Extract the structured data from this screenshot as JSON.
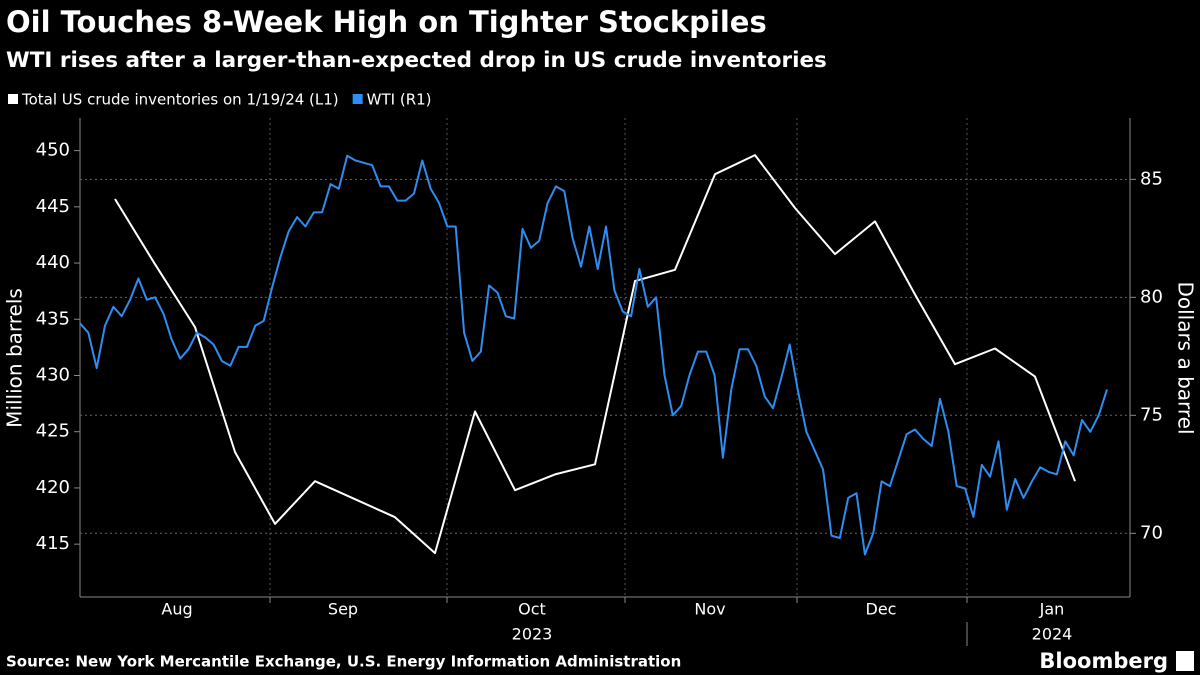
{
  "chart_data": {
    "type": "line",
    "title": "Oil Touches 8-Week High on Tighter Stockpiles",
    "subtitle": "WTI rises after a larger-than-expected drop in US crude inventories",
    "x_labels": [
      "Aug",
      "Sep",
      "Oct",
      "Nov",
      "Dec",
      "Jan"
    ],
    "year_labels": [
      "2023",
      "2024"
    ],
    "ylabel": "Million barrels",
    "y2label": "Dollars a barrel",
    "ylim": [
      410.3,
      452.9
    ],
    "yticks": [
      415,
      420,
      425,
      430,
      435,
      440,
      445,
      450
    ],
    "y2lim": [
      67.3,
      87.6
    ],
    "y2ticks": [
      70,
      75,
      80,
      85
    ],
    "grid": true,
    "source": "Source: New York Mercantile Exchange, U.S. Energy Information Administration",
    "brand": "Bloomberg",
    "series": [
      {
        "name": "Total US crude inventories on 1/19/24 (L1)",
        "color": "#ffffff",
        "axis": "y",
        "values": [
          445.7,
          439.9,
          434.3,
          423.2,
          416.8,
          420.6,
          419.0,
          417.4,
          414.2,
          426.8,
          419.8,
          421.2,
          422.1,
          438.4,
          439.4,
          447.9,
          449.6,
          444.9,
          440.8,
          443.7,
          437.2,
          431.0,
          432.4,
          429.9,
          420.6
        ]
      },
      {
        "name": "WTI (R1)",
        "color": "#2f8cf0",
        "axis": "y2",
        "values": [
          78.9,
          78.5,
          77.0,
          78.8,
          79.6,
          79.2,
          79.9,
          80.8,
          79.9,
          80.0,
          79.3,
          78.2,
          77.4,
          77.8,
          78.5,
          78.3,
          78.0,
          77.3,
          77.1,
          77.9,
          77.9,
          78.8,
          79.0,
          80.4,
          81.7,
          82.8,
          83.4,
          83.0,
          83.6,
          83.6,
          84.8,
          84.6,
          86.0,
          85.8,
          85.7,
          85.6,
          84.7,
          84.7,
          84.1,
          84.1,
          84.4,
          85.8,
          84.6,
          84.0,
          83.0,
          83.0,
          78.5,
          77.3,
          77.7,
          80.5,
          80.2,
          79.2,
          79.1,
          82.9,
          82.1,
          82.4,
          84.0,
          84.7,
          84.5,
          82.5,
          81.3,
          83.0,
          81.2,
          83.0,
          80.3,
          79.4,
          79.2,
          81.2,
          79.6,
          80.0,
          76.7,
          75.0,
          75.4,
          76.7,
          77.7,
          77.7,
          76.7,
          73.2,
          76.1,
          77.8,
          77.8,
          77.1,
          75.8,
          75.3,
          76.6,
          78.0,
          76.0,
          74.3,
          73.5,
          72.7,
          69.9,
          69.8,
          71.5,
          71.7,
          69.1,
          70.0,
          72.2,
          72.0,
          73.1,
          74.2,
          74.4,
          74.0,
          73.7,
          75.7,
          74.3,
          72.0,
          71.9,
          70.7,
          72.9,
          72.4,
          73.9,
          71.0,
          72.3,
          71.5,
          72.2,
          72.8,
          72.6,
          72.5,
          73.9,
          73.3,
          74.8,
          74.3,
          75.0,
          76.1
        ]
      }
    ]
  }
}
